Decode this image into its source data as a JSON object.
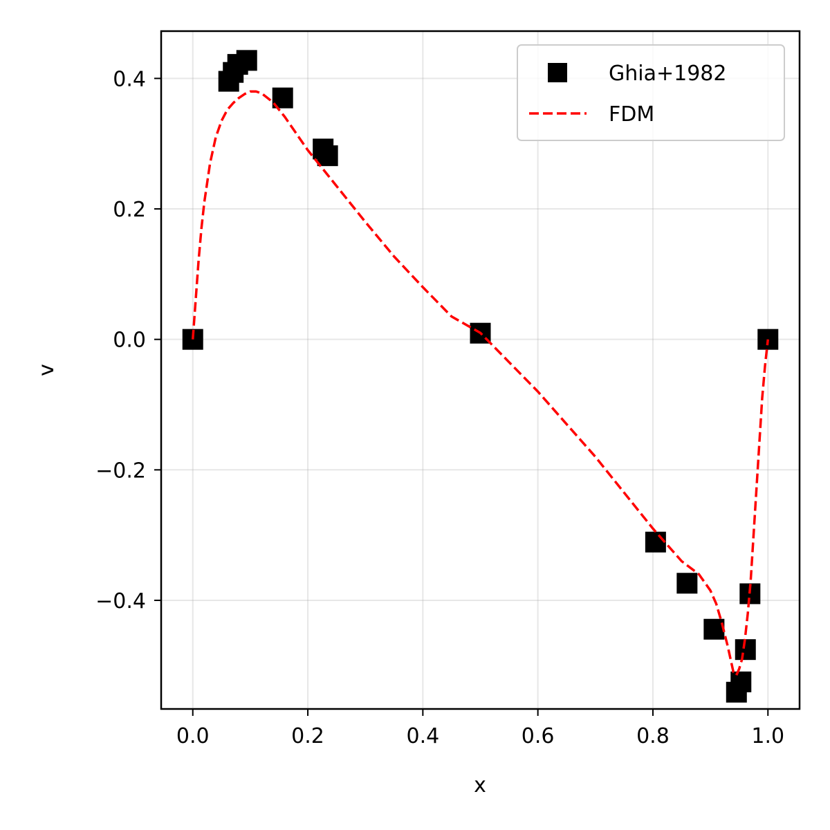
{
  "chart_data": {
    "type": "scatter",
    "xlabel": "x",
    "ylabel": "v",
    "xlim": [
      -0.055,
      1.055
    ],
    "ylim": [
      -0.5665,
      0.4725
    ],
    "xticks": [
      0.0,
      0.2,
      0.4,
      0.6,
      0.8,
      1.0
    ],
    "xtick_labels": [
      "0.0",
      "0.2",
      "0.4",
      "0.6",
      "0.8",
      "1.0"
    ],
    "yticks": [
      -0.4,
      -0.2,
      0.0,
      0.2,
      0.4
    ],
    "ytick_labels": [
      "−0.4",
      "−0.2",
      "0.0",
      "0.2",
      "0.4"
    ],
    "grid": true,
    "legend_position": "top-right",
    "series": [
      {
        "name": "Ghia+1982",
        "kind": "scatter",
        "marker": "square",
        "color": "#000000",
        "x": [
          0.0,
          0.0625,
          0.0703,
          0.0781,
          0.0938,
          0.1563,
          0.2266,
          0.2344,
          0.5,
          0.8047,
          0.8594,
          0.9063,
          0.9453,
          0.9531,
          0.9609,
          0.9688,
          1.0
        ],
        "y": [
          0.0,
          0.3956,
          0.4092,
          0.4215,
          0.4276,
          0.3701,
          0.2918,
          0.2815,
          0.0095,
          -0.3107,
          -0.3738,
          -0.4443,
          -0.5408,
          -0.525,
          -0.4755,
          -0.3899,
          0.0
        ]
      },
      {
        "name": "FDM",
        "kind": "line",
        "style": "dashed",
        "color": "#ff0000",
        "x": [
          0.0,
          0.005,
          0.01,
          0.015,
          0.02,
          0.03,
          0.04,
          0.05,
          0.06,
          0.07,
          0.08,
          0.09,
          0.1,
          0.11,
          0.12,
          0.14,
          0.16,
          0.2,
          0.25,
          0.3,
          0.35,
          0.4,
          0.45,
          0.5,
          0.55,
          0.6,
          0.65,
          0.7,
          0.75,
          0.8,
          0.85,
          0.88,
          0.9,
          0.91,
          0.92,
          0.93,
          0.94,
          0.945,
          0.95,
          0.955,
          0.96,
          0.965,
          0.97,
          0.975,
          0.98,
          0.985,
          0.99,
          0.995,
          1.0
        ],
        "y": [
          0.0,
          0.06,
          0.12,
          0.17,
          0.21,
          0.27,
          0.31,
          0.335,
          0.352,
          0.362,
          0.37,
          0.376,
          0.38,
          0.38,
          0.377,
          0.363,
          0.341,
          0.29,
          0.235,
          0.18,
          0.127,
          0.08,
          0.035,
          0.01,
          -0.035,
          -0.08,
          -0.13,
          -0.18,
          -0.235,
          -0.29,
          -0.34,
          -0.36,
          -0.385,
          -0.405,
          -0.435,
          -0.47,
          -0.51,
          -0.515,
          -0.505,
          -0.49,
          -0.46,
          -0.42,
          -0.37,
          -0.3,
          -0.23,
          -0.16,
          -0.09,
          -0.04,
          0.0
        ]
      }
    ]
  }
}
